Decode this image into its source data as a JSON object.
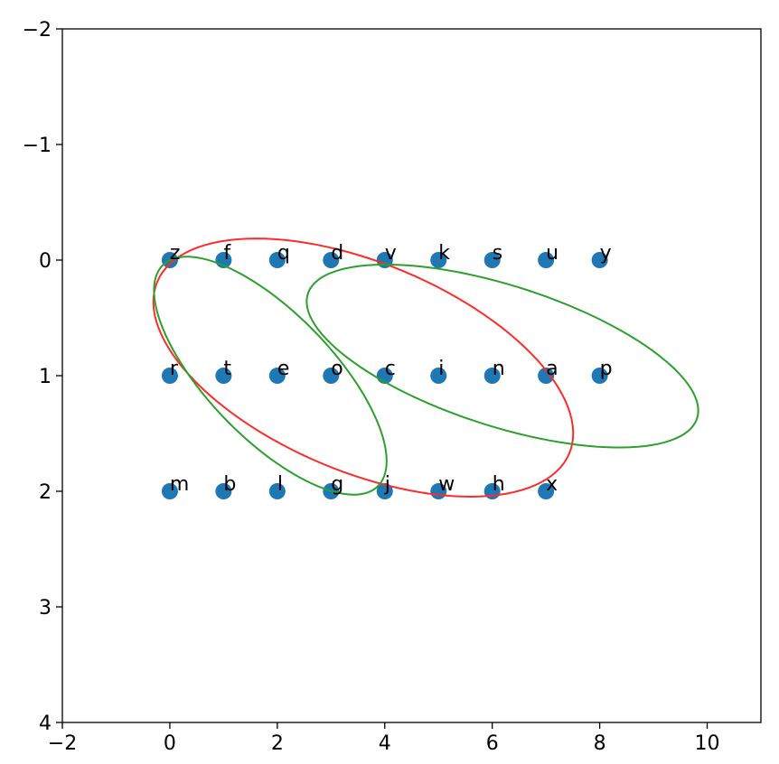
{
  "chart_data": {
    "type": "scatter",
    "x": [
      0,
      1,
      2,
      3,
      4,
      5,
      6,
      7,
      8,
      0,
      1,
      2,
      3,
      4,
      5,
      6,
      7,
      8,
      0,
      1,
      2,
      3,
      4,
      5,
      6,
      7
    ],
    "y": [
      0,
      0,
      0,
      0,
      0,
      0,
      0,
      0,
      0,
      1,
      1,
      1,
      1,
      1,
      1,
      1,
      1,
      1,
      2,
      2,
      2,
      2,
      2,
      2,
      2,
      2
    ],
    "labels": [
      "z",
      "f",
      "q",
      "d",
      "v",
      "k",
      "s",
      "u",
      "y",
      "r",
      "t",
      "e",
      "o",
      "c",
      "i",
      "n",
      "a",
      "p",
      "m",
      "b",
      "l",
      "g",
      "j",
      "w",
      "h",
      "x"
    ],
    "color": "#1f77b4",
    "ellipses": [
      {
        "center": [
          3.6,
          0.93
        ],
        "width": 7.9,
        "height": 1.9,
        "angle": 8.8,
        "color": "#ff2a2a"
      },
      {
        "center": [
          1.87,
          1.0
        ],
        "width": 4.6,
        "height": 1.35,
        "angle": 20.7,
        "color": "#2ca02c"
      },
      {
        "center": [
          6.19,
          0.83
        ],
        "width": 7.35,
        "height": 1.26,
        "angle": 7.6,
        "color": "#2ca02c"
      }
    ],
    "xlim": [
      -2,
      11
    ],
    "ylim": [
      -2,
      4
    ],
    "y_inverted": true,
    "xticks": [
      {
        "value": -2,
        "label": "−2"
      },
      0,
      2,
      4,
      6,
      8,
      10
    ],
    "yticks": [
      {
        "value": -2,
        "label": "−2"
      },
      {
        "value": -1,
        "label": "−1"
      },
      0,
      1,
      2,
      3,
      4
    ]
  }
}
